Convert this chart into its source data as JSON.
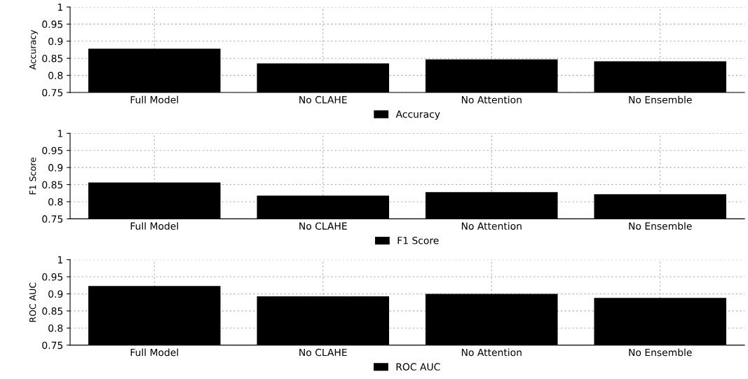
{
  "chart_data": [
    {
      "type": "bar",
      "categories": [
        "Full Model",
        "No CLAHE",
        "No Attention",
        "No Ensemble"
      ],
      "ylabel": "Accuracy",
      "ylim": [
        0.75,
        1
      ],
      "yticks": [
        0.75,
        0.8,
        0.85,
        0.9,
        0.95,
        1
      ],
      "grid": true,
      "legend": "bottom",
      "series": [
        {
          "name": "Accuracy",
          "color": "#000000",
          "values": [
            0.878,
            0.835,
            0.847,
            0.841
          ]
        }
      ]
    },
    {
      "type": "bar",
      "categories": [
        "Full Model",
        "No CLAHE",
        "No Attention",
        "No Ensemble"
      ],
      "ylabel": "F1 Score",
      "ylim": [
        0.75,
        1
      ],
      "yticks": [
        0.75,
        0.8,
        0.85,
        0.9,
        0.95,
        1
      ],
      "grid": true,
      "legend": "bottom",
      "series": [
        {
          "name": "F1 Score",
          "color": "#000000",
          "values": [
            0.856,
            0.818,
            0.828,
            0.822
          ]
        }
      ]
    },
    {
      "type": "bar",
      "categories": [
        "Full Model",
        "No CLAHE",
        "No Attention",
        "No Ensemble"
      ],
      "ylabel": "ROC AUC",
      "ylim": [
        0.75,
        1
      ],
      "yticks": [
        0.75,
        0.8,
        0.85,
        0.9,
        0.95,
        1
      ],
      "grid": true,
      "legend": "bottom",
      "series": [
        {
          "name": "ROC AUC",
          "color": "#000000",
          "values": [
            0.923,
            0.893,
            0.9,
            0.888
          ]
        }
      ]
    }
  ]
}
